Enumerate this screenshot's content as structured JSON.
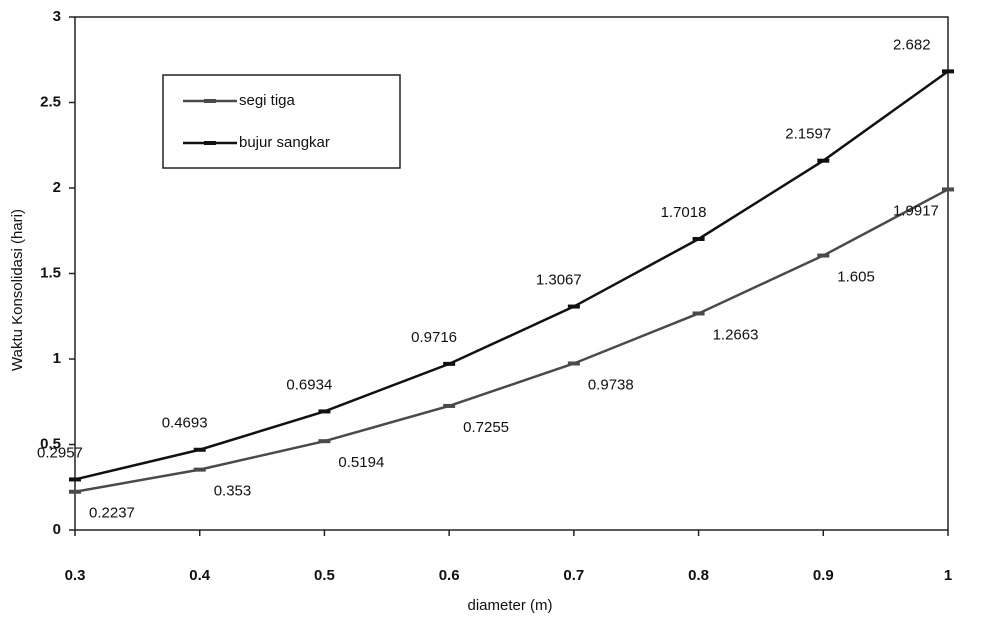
{
  "chart_data": {
    "type": "line",
    "x_label": "diameter (m)",
    "y_label": "Waktu Konsolidasi (hari)",
    "x": [
      0.3,
      0.4,
      0.5,
      0.6,
      0.7,
      0.8,
      0.9,
      1
    ],
    "series": [
      {
        "name": "segi tiga",
        "color": "#4a4a4a",
        "values": [
          0.2237,
          0.353,
          0.5194,
          0.7255,
          0.9738,
          1.2663,
          1.605,
          1.9917
        ]
      },
      {
        "name": "bujur sangkar",
        "color": "#111111",
        "values": [
          0.2957,
          0.4693,
          0.6934,
          0.9716,
          1.3067,
          1.7018,
          2.1597,
          2.682
        ]
      }
    ],
    "xlim": [
      0.3,
      1
    ],
    "xticks": [
      0.3,
      0.4,
      0.5,
      0.6,
      0.7,
      0.8,
      0.9,
      1
    ],
    "ylim": [
      0,
      3
    ],
    "yticks": [
      0,
      0.5,
      1,
      1.5,
      2,
      2.5,
      3
    ],
    "grid": false,
    "legend": "upper left"
  }
}
